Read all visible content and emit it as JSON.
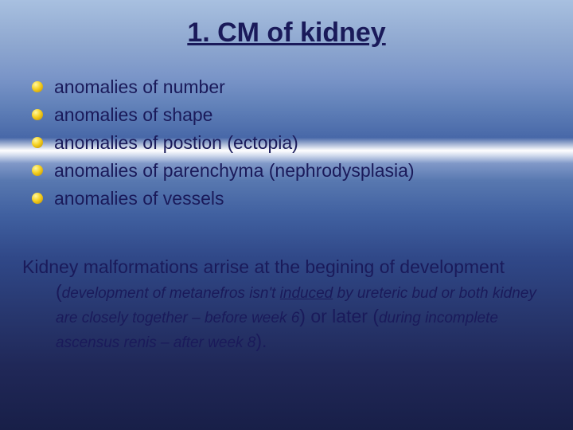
{
  "colors": {
    "text_color": "#1a1a5a",
    "bullet_gradient_light": "#fff8a0",
    "bullet_gradient_mid": "#f5d020",
    "bullet_gradient_dark": "#b88800"
  },
  "typography": {
    "title_fontsize": 34,
    "bullet_fontsize": 23,
    "paragraph_fontsize": 23,
    "italic_fontsize": 19,
    "font_family": "Verdana"
  },
  "title": "1. CM of kidney",
  "bullets": [
    "anomalies of number",
    "anomalies of shape",
    "anomalies of postion (ectopia)",
    "anomalies of parenchyma (nephrodysplasia)",
    "anomalies of vessels"
  ],
  "paragraph": {
    "lead1": "Kidney malformations arrise at the begining of development (",
    "italic1a": "development of metanefros isn't ",
    "italic1_underlined": "induced",
    "italic1b": " by ureteric bud or both kidney are closely together  – before week 6",
    "mid": ") or later (",
    "italic2": "during incomplete ascensus renis – after week 8",
    "tail": ")."
  }
}
